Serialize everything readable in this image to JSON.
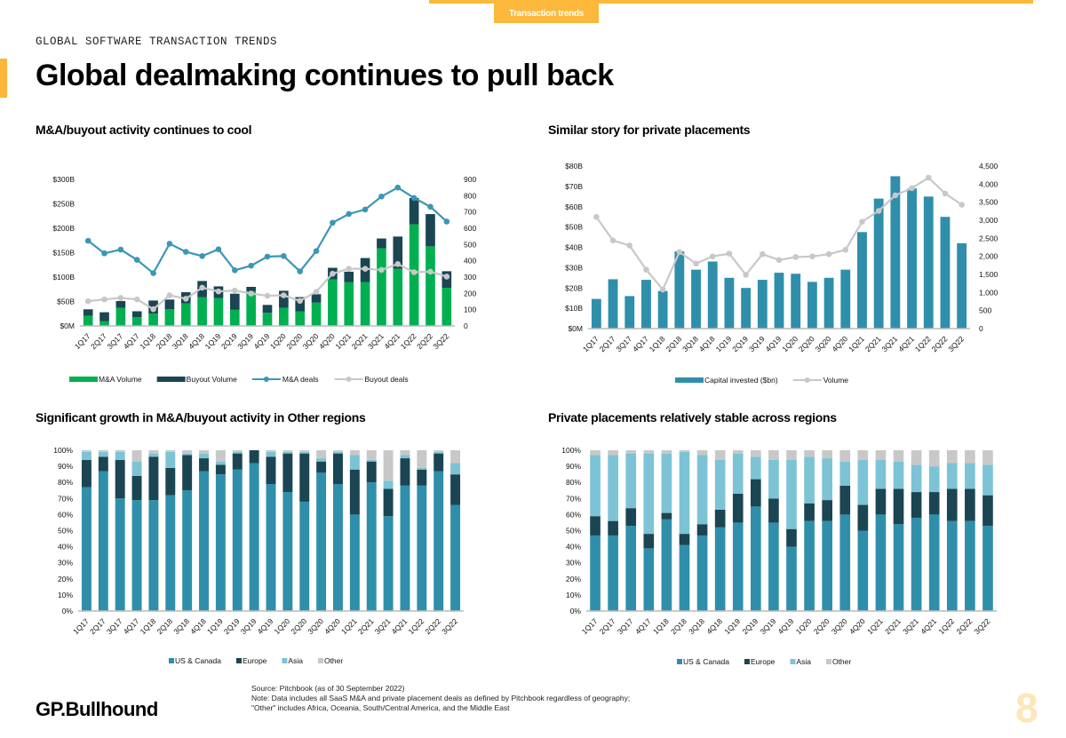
{
  "header": {
    "tab_label": "Transaction trends",
    "kicker": "GLOBAL SOFTWARE TRANSACTION TRENDS",
    "title": "Global dealmaking continues to pull back",
    "accent_color": "#fbb83a"
  },
  "footer": {
    "logo": "GP.Bullhound",
    "source": "Source: Pitchbook (as of 30 September 2022)",
    "note1": "Note: Data includes all SaaS M&A and private placement deals as defined by Pitchbook regardless of geography;",
    "note2": "\"Other\" includes Africa, Oceania, South/Central America, and the Middle East",
    "page_number": "8"
  },
  "chart_data": [
    {
      "title": "M&A/buyout activity continues to cool",
      "type": "bar+line",
      "categories": [
        "1Q17",
        "2Q17",
        "3Q17",
        "4Q17",
        "1Q18",
        "2Q18",
        "3Q18",
        "4Q18",
        "1Q19",
        "2Q19",
        "3Q19",
        "4Q19",
        "1Q20",
        "2Q20",
        "3Q20",
        "4Q20",
        "1Q21",
        "2Q21",
        "3Q21",
        "4Q21",
        "1Q22",
        "2Q22",
        "3Q22"
      ],
      "y_left": {
        "ticks": [
          "$0M",
          "$50B",
          "$100B",
          "$150B",
          "$200B",
          "$250B",
          "$300B"
        ],
        "range": [
          0,
          300
        ],
        "unit": "$B"
      },
      "y_right": {
        "ticks": [
          "0",
          "100",
          "200",
          "300",
          "400",
          "500",
          "600",
          "700",
          "800",
          "900"
        ],
        "range": [
          0,
          900
        ]
      },
      "stacked_bars": [
        {
          "name": "M&A Volume",
          "color": "#00b050",
          "values": [
            21,
            10,
            37,
            18,
            25,
            34,
            46,
            59,
            57,
            33,
            71,
            27,
            37,
            30,
            48,
            95,
            90,
            90,
            159,
            117,
            208,
            163,
            78
          ]
        },
        {
          "name": "Buyout Volume",
          "color": "#1b4552",
          "values": [
            13,
            18,
            14,
            12,
            27,
            20,
            23,
            33,
            24,
            33,
            9,
            16,
            35,
            29,
            17,
            24,
            21,
            49,
            20,
            66,
            54,
            66,
            34
          ]
        }
      ],
      "lines": [
        {
          "name": "M&A deals",
          "color": "#3a97b5",
          "axis": "right",
          "values": [
            523,
            446,
            469,
            406,
            324,
            505,
            455,
            429,
            471,
            342,
            370,
            426,
            429,
            335,
            460,
            634,
            688,
            715,
            795,
            850,
            786,
            732,
            641
          ]
        },
        {
          "name": "Buyout deals",
          "color": "#c8c8c8",
          "axis": "right",
          "values": [
            152,
            163,
            172,
            163,
            103,
            188,
            167,
            235,
            212,
            217,
            199,
            185,
            188,
            154,
            210,
            321,
            351,
            351,
            344,
            380,
            330,
            333,
            303
          ]
        }
      ],
      "legend": "bottom"
    },
    {
      "title": "Similar story for private placements",
      "type": "bar+line",
      "categories": [
        "1Q17",
        "2Q17",
        "3Q17",
        "4Q17",
        "1Q18",
        "2Q18",
        "3Q18",
        "4Q18",
        "1Q19",
        "2Q19",
        "3Q19",
        "4Q19",
        "1Q20",
        "2Q20",
        "3Q20",
        "4Q20",
        "1Q21",
        "2Q21",
        "3Q21",
        "4Q21",
        "1Q22",
        "2Q22",
        "3Q22"
      ],
      "y_left": {
        "ticks": [
          "$0M",
          "$10B",
          "$20B",
          "$30B",
          "$40B",
          "$50B",
          "$60B",
          "$70B",
          "$80B"
        ],
        "range": [
          0,
          80
        ],
        "unit": "$B"
      },
      "y_right": {
        "ticks": [
          "0",
          "500",
          "1,000",
          "1,500",
          "2,000",
          "2,500",
          "3,000",
          "3,500",
          "4,000",
          "4,500"
        ],
        "range": [
          0,
          4500
        ]
      },
      "stacked_bars": [
        {
          "name": "Capital invested ($bn)",
          "color": "#2f8fab",
          "values": [
            14.6,
            24.3,
            16,
            24,
            18.5,
            38,
            29,
            33,
            25,
            20,
            24,
            27.5,
            27,
            23,
            25,
            29,
            47.5,
            64,
            75,
            69,
            65,
            55,
            42
          ]
        }
      ],
      "lines": [
        {
          "name": "Volume",
          "color": "#c8c8c8",
          "axis": "right",
          "values": [
            3090,
            2440,
            2300,
            1630,
            1080,
            2120,
            1800,
            2000,
            2075,
            1490,
            2060,
            1900,
            1980,
            2000,
            2060,
            2180,
            2960,
            3260,
            3690,
            3890,
            4180,
            3740,
            3430
          ]
        }
      ],
      "legend": "bottom"
    },
    {
      "title": "Significant growth in M&A/buyout activity in Other regions",
      "type": "stacked-bar-100",
      "categories": [
        "1Q17",
        "2Q17",
        "3Q17",
        "4Q17",
        "1Q18",
        "2Q18",
        "3Q18",
        "4Q18",
        "1Q19",
        "2Q19",
        "3Q19",
        "4Q19",
        "1Q20",
        "2Q20",
        "3Q20",
        "4Q20",
        "1Q21",
        "2Q21",
        "3Q21",
        "4Q21",
        "1Q22",
        "2Q22",
        "3Q22"
      ],
      "y_left": {
        "ticks": [
          "0%",
          "10%",
          "20%",
          "30%",
          "40%",
          "50%",
          "60%",
          "70%",
          "80%",
          "90%",
          "100%"
        ],
        "range": [
          0,
          100
        ],
        "unit": "%"
      },
      "stacked_bars": [
        {
          "name": "US & Canada",
          "color": "#2f8fab",
          "values": [
            77,
            87,
            70,
            69,
            69,
            72,
            75,
            87,
            85,
            88,
            92,
            79,
            74,
            68,
            86,
            79,
            60,
            80,
            59,
            78,
            78,
            87,
            66
          ]
        },
        {
          "name": "Europe",
          "color": "#1b4552",
          "values": [
            17,
            9,
            24,
            15,
            27,
            17,
            22,
            8,
            6,
            10,
            8,
            17,
            24,
            30,
            7,
            19,
            28,
            13,
            17,
            17,
            10,
            11,
            19
          ]
        },
        {
          "name": "Asia",
          "color": "#7cc3d6",
          "values": [
            5,
            3,
            5,
            9,
            2,
            10,
            1,
            3,
            2,
            1,
            0,
            3,
            1,
            1,
            2,
            1,
            9,
            1,
            5,
            2,
            1,
            1,
            7
          ]
        },
        {
          "name": "Other",
          "color": "#c8c8c8",
          "values": [
            1,
            1,
            1,
            7,
            2,
            1,
            2,
            2,
            7,
            1,
            0,
            1,
            1,
            1,
            5,
            1,
            3,
            6,
            19,
            3,
            11,
            1,
            8
          ]
        }
      ],
      "legend": "bottom"
    },
    {
      "title": "Private placements relatively stable across regions",
      "type": "stacked-bar-100",
      "categories": [
        "1Q17",
        "2Q17",
        "3Q17",
        "4Q17",
        "1Q18",
        "2Q18",
        "3Q18",
        "4Q18",
        "1Q19",
        "2Q19",
        "3Q19",
        "4Q19",
        "1Q20",
        "2Q20",
        "3Q20",
        "4Q20",
        "1Q21",
        "2Q21",
        "3Q21",
        "4Q21",
        "1Q22",
        "2Q22",
        "3Q22"
      ],
      "y_left": {
        "ticks": [
          "0%",
          "10%",
          "20%",
          "30%",
          "40%",
          "50%",
          "60%",
          "70%",
          "80%",
          "90%",
          "100%"
        ],
        "range": [
          0,
          100
        ],
        "unit": "%"
      },
      "stacked_bars": [
        {
          "name": "US & Canada",
          "color": "#2f8fab",
          "values": [
            47,
            47,
            53,
            39,
            57,
            41,
            47,
            52,
            55,
            65,
            55,
            40,
            56,
            56,
            60,
            50,
            60,
            54,
            58,
            60,
            56,
            56,
            53
          ]
        },
        {
          "name": "Europe",
          "color": "#1b4552",
          "values": [
            12,
            9,
            11,
            9,
            4,
            7,
            7,
            11,
            18,
            17,
            15,
            11,
            11,
            13,
            18,
            16,
            16,
            22,
            16,
            14,
            20,
            20,
            19
          ]
        },
        {
          "name": "Asia",
          "color": "#7cc3d6",
          "values": [
            38,
            41,
            34,
            50,
            37,
            51,
            43,
            31,
            25,
            14,
            24,
            43,
            29,
            26,
            15,
            28,
            18,
            17,
            17,
            16,
            16,
            16,
            19
          ]
        },
        {
          "name": "Other",
          "color": "#c8c8c8",
          "values": [
            3,
            3,
            2,
            2,
            2,
            1,
            3,
            6,
            2,
            4,
            6,
            6,
            4,
            5,
            7,
            6,
            6,
            7,
            9,
            10,
            8,
            8,
            9
          ]
        }
      ],
      "legend": "bottom"
    }
  ]
}
